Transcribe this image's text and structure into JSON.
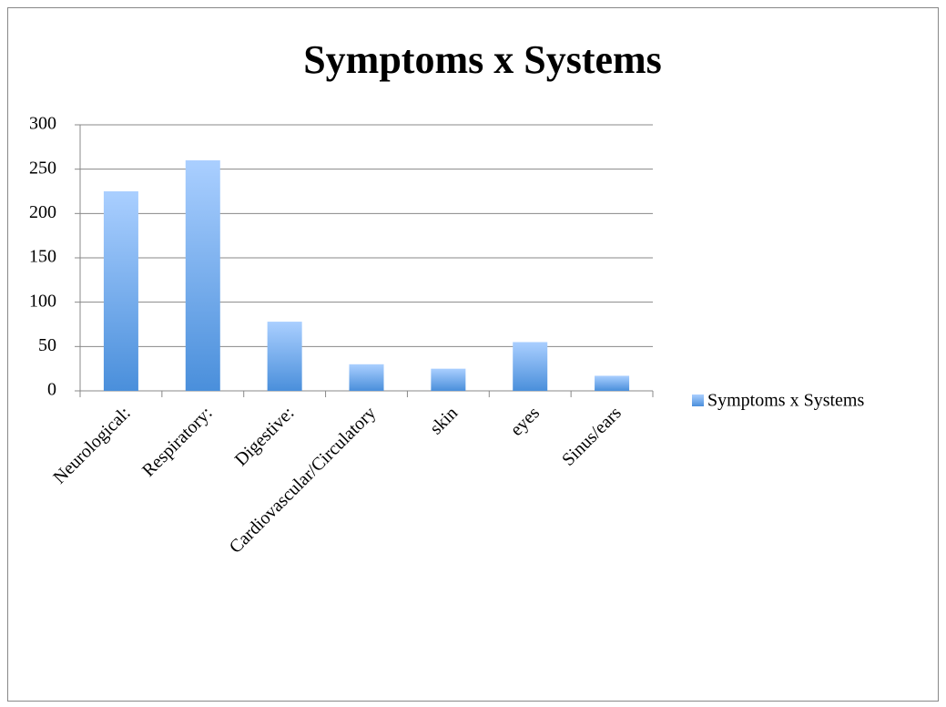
{
  "chart_data": {
    "type": "bar",
    "title": "Symptoms x Systems",
    "categories": [
      "Neurological:",
      "Respiratory:",
      "Digestive:",
      "Cardiovascular/Circulatory",
      "skin",
      "eyes",
      "Sinus/ears"
    ],
    "series": [
      {
        "name": "Symptoms x Systems",
        "color": "#4a8fdb",
        "values": [
          225,
          260,
          78,
          30,
          25,
          55,
          17
        ]
      }
    ],
    "ylim": [
      0,
      300
    ],
    "yticks": [
      0,
      50,
      100,
      150,
      200,
      250,
      300
    ],
    "grid": true,
    "legend": "right"
  }
}
